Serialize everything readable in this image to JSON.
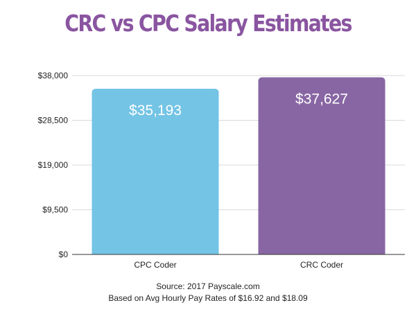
{
  "chart_data": {
    "type": "bar",
    "title": "CRC vs CPC Salary Estimates",
    "categories": [
      "CPC Coder",
      "CRC Coder"
    ],
    "values": [
      35193,
      37627
    ],
    "data_labels": [
      "$35,193",
      "$37,627"
    ],
    "colors": [
      "#74c4e5",
      "#8866a3"
    ],
    "ylim": [
      0,
      38000
    ],
    "yticks": [
      0,
      9500,
      19000,
      28500,
      38000
    ],
    "ytick_labels": [
      "$0",
      "$9,500",
      "$19,000",
      "$28,500",
      "$38,000"
    ],
    "grid": true,
    "xlabel": "",
    "ylabel": ""
  },
  "footnote": {
    "source": "Source: 2017 Payscale.com",
    "basis": "Based on Avg Hourly Pay Rates of $16.92 and $18.09"
  },
  "colors": {
    "title": "#8a55a0",
    "grid": "#d9d9d9",
    "axis": "#333333"
  }
}
